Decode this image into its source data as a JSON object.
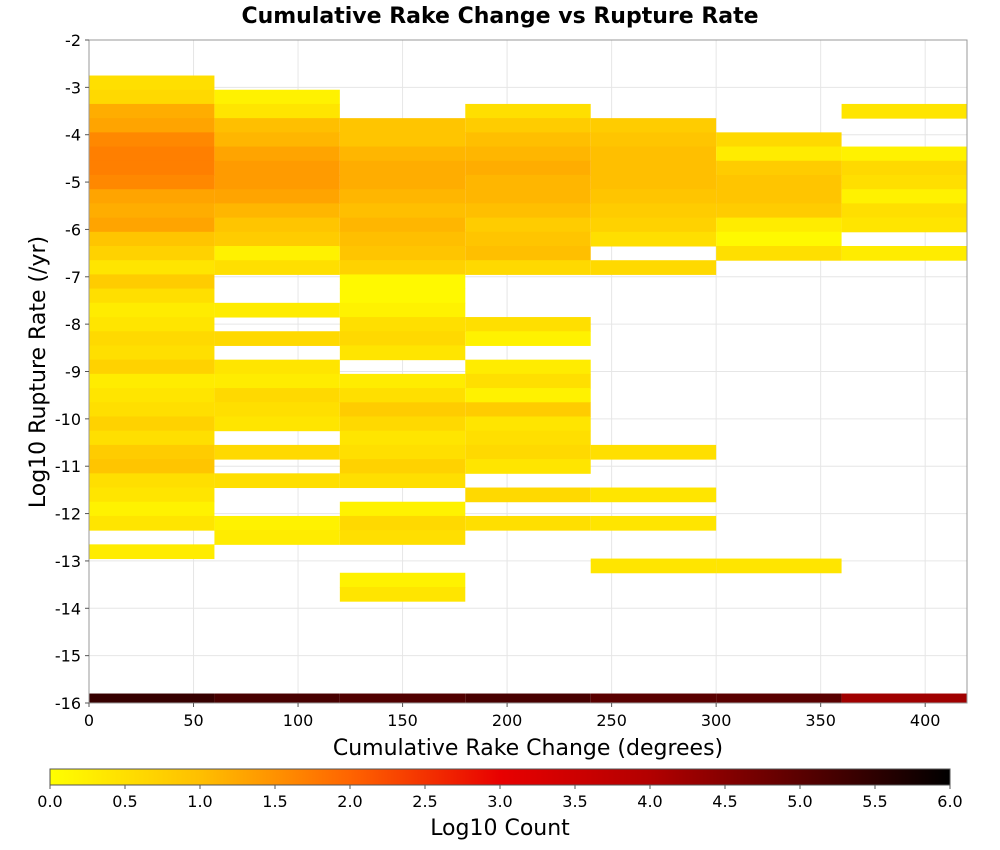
{
  "chart_data": {
    "type": "heatmap",
    "title": "Cumulative Rake Change vs Rupture Rate",
    "xlabel": "Cumulative Rake Change (degrees)",
    "ylabel": "Log10 Rupture Rate (/yr)",
    "xlim": [
      0,
      420
    ],
    "ylim": [
      -16,
      -2
    ],
    "x_ticks": [
      0,
      50,
      100,
      150,
      200,
      250,
      300,
      350,
      400
    ],
    "y_ticks": [
      -2,
      -3,
      -4,
      -5,
      -6,
      -7,
      -8,
      -9,
      -10,
      -11,
      -12,
      -13,
      -14,
      -15,
      -16
    ],
    "bin_width_x": 60,
    "bin_height_y": 0.3,
    "grid": true,
    "colorbar": {
      "label": "Log10 Count",
      "range": [
        0,
        6
      ],
      "ticks": [
        "0.0",
        "0.5",
        "1.0",
        "1.5",
        "2.0",
        "2.5",
        "3.0",
        "3.5",
        "4.0",
        "4.5",
        "5.0",
        "5.5",
        "6.0"
      ],
      "colormap": [
        {
          "v": 0.0,
          "color": "#ffff00"
        },
        {
          "v": 1.0,
          "color": "#ffbf00"
        },
        {
          "v": 2.0,
          "color": "#ff6400"
        },
        {
          "v": 3.0,
          "color": "#e80000"
        },
        {
          "v": 4.0,
          "color": "#b20000"
        },
        {
          "v": 5.0,
          "color": "#5a0000"
        },
        {
          "v": 6.0,
          "color": "#000000"
        }
      ]
    },
    "columns": [
      {
        "x": 0,
        "cells": [
          [
            -2.9,
            0.5
          ],
          [
            -3.2,
            0.6
          ],
          [
            -3.5,
            1.2
          ],
          [
            -3.8,
            1.3
          ],
          [
            -4.1,
            1.6
          ],
          [
            -4.4,
            1.7
          ],
          [
            -4.7,
            1.7
          ],
          [
            -5.0,
            1.6
          ],
          [
            -5.3,
            1.3
          ],
          [
            -5.6,
            1.2
          ],
          [
            -5.9,
            1.3
          ],
          [
            -6.2,
            0.9
          ],
          [
            -6.5,
            0.7
          ],
          [
            -6.8,
            0.4
          ],
          [
            -7.1,
            0.8
          ],
          [
            -7.4,
            0.5
          ],
          [
            -7.7,
            0.3
          ],
          [
            -8.0,
            0.4
          ],
          [
            -8.3,
            0.6
          ],
          [
            -8.6,
            0.5
          ],
          [
            -8.9,
            0.7
          ],
          [
            -9.2,
            0.3
          ],
          [
            -9.5,
            0.4
          ],
          [
            -9.8,
            0.5
          ],
          [
            -10.1,
            0.7
          ],
          [
            -10.4,
            0.5
          ],
          [
            -10.7,
            0.8
          ],
          [
            -11.0,
            0.9
          ],
          [
            -11.3,
            0.5
          ],
          [
            -11.6,
            0.4
          ],
          [
            -11.9,
            0.2
          ],
          [
            -12.2,
            0.4
          ],
          [
            -12.8,
            0.3
          ]
        ]
      },
      {
        "x": 60,
        "cells": [
          [
            -3.2,
            0.2
          ],
          [
            -3.5,
            0.4
          ],
          [
            -3.8,
            1.0
          ],
          [
            -4.1,
            1.1
          ],
          [
            -4.4,
            1.3
          ],
          [
            -4.7,
            1.4
          ],
          [
            -5.0,
            1.4
          ],
          [
            -5.3,
            1.3
          ],
          [
            -5.6,
            1.1
          ],
          [
            -5.9,
            0.9
          ],
          [
            -6.2,
            0.8
          ],
          [
            -6.5,
            0.2
          ],
          [
            -6.8,
            0.5
          ],
          [
            -7.7,
            0.3
          ],
          [
            -8.3,
            0.6
          ],
          [
            -8.9,
            0.4
          ],
          [
            -9.2,
            0.3
          ],
          [
            -9.5,
            0.6
          ],
          [
            -9.8,
            0.5
          ],
          [
            -10.1,
            0.4
          ],
          [
            -10.7,
            0.6
          ],
          [
            -11.3,
            0.5
          ],
          [
            -12.2,
            0.2
          ],
          [
            -12.5,
            0.3
          ]
        ]
      },
      {
        "x": 120,
        "cells": [
          [
            -3.8,
            0.9
          ],
          [
            -4.1,
            0.9
          ],
          [
            -4.4,
            1.1
          ],
          [
            -4.7,
            1.2
          ],
          [
            -5.0,
            1.2
          ],
          [
            -5.3,
            1.1
          ],
          [
            -5.6,
            1.0
          ],
          [
            -5.9,
            1.1
          ],
          [
            -6.2,
            1.0
          ],
          [
            -6.5,
            0.9
          ],
          [
            -6.8,
            0.7
          ],
          [
            -7.1,
            0.1
          ],
          [
            -7.4,
            0.1
          ],
          [
            -7.7,
            0.2
          ],
          [
            -8.0,
            0.5
          ],
          [
            -8.3,
            0.6
          ],
          [
            -8.6,
            0.4
          ],
          [
            -9.2,
            0.3
          ],
          [
            -9.5,
            0.5
          ],
          [
            -9.8,
            0.8
          ],
          [
            -10.1,
            0.6
          ],
          [
            -10.4,
            0.4
          ],
          [
            -10.7,
            0.5
          ],
          [
            -11.0,
            0.7
          ],
          [
            -11.3,
            0.5
          ],
          [
            -11.9,
            0.2
          ],
          [
            -12.2,
            0.6
          ],
          [
            -12.5,
            0.5
          ],
          [
            -13.4,
            0.2
          ],
          [
            -13.7,
            0.4
          ]
        ]
      },
      {
        "x": 180,
        "cells": [
          [
            -3.5,
            0.5
          ],
          [
            -3.8,
            0.8
          ],
          [
            -4.1,
            1.0
          ],
          [
            -4.4,
            1.1
          ],
          [
            -4.7,
            1.2
          ],
          [
            -5.0,
            1.1
          ],
          [
            -5.3,
            1.1
          ],
          [
            -5.6,
            1.0
          ],
          [
            -5.9,
            0.8
          ],
          [
            -6.2,
            0.9
          ],
          [
            -6.5,
            1.0
          ],
          [
            -6.8,
            0.6
          ],
          [
            -8.0,
            0.5
          ],
          [
            -8.3,
            0.2
          ],
          [
            -8.9,
            0.3
          ],
          [
            -9.2,
            0.5
          ],
          [
            -9.5,
            0.2
          ],
          [
            -9.8,
            0.8
          ],
          [
            -10.1,
            0.4
          ],
          [
            -10.4,
            0.5
          ],
          [
            -10.7,
            0.6
          ],
          [
            -11.0,
            0.4
          ],
          [
            -11.6,
            0.6
          ],
          [
            -12.2,
            0.5
          ]
        ]
      },
      {
        "x": 240,
        "cells": [
          [
            -3.8,
            0.8
          ],
          [
            -4.1,
            0.9
          ],
          [
            -4.4,
            1.0
          ],
          [
            -4.7,
            1.0
          ],
          [
            -5.0,
            1.0
          ],
          [
            -5.3,
            0.9
          ],
          [
            -5.6,
            0.8
          ],
          [
            -5.9,
            0.7
          ],
          [
            -6.2,
            0.5
          ],
          [
            -6.8,
            0.6
          ],
          [
            -10.7,
            0.5
          ],
          [
            -11.6,
            0.4
          ],
          [
            -12.2,
            0.4
          ],
          [
            -13.1,
            0.4
          ]
        ]
      },
      {
        "x": 300,
        "cells": [
          [
            -4.1,
            0.6
          ],
          [
            -4.4,
            0.3
          ],
          [
            -4.7,
            0.8
          ],
          [
            -5.0,
            0.9
          ],
          [
            -5.3,
            0.9
          ],
          [
            -5.6,
            0.8
          ],
          [
            -5.9,
            0.3
          ],
          [
            -6.2,
            0.1
          ],
          [
            -6.5,
            0.5
          ],
          [
            -13.1,
            0.4
          ]
        ]
      },
      {
        "x": 360,
        "cells": [
          [
            -3.5,
            0.4
          ],
          [
            -4.4,
            0.2
          ],
          [
            -4.7,
            0.6
          ],
          [
            -5.0,
            0.5
          ],
          [
            -5.3,
            0.2
          ],
          [
            -5.6,
            0.5
          ],
          [
            -5.9,
            0.4
          ],
          [
            -6.5,
            0.3
          ]
        ]
      }
    ],
    "bottom_row": {
      "y": -16.0,
      "values": [
        5.4,
        5.2,
        5.1,
        5.2,
        5.0,
        5.0,
        4.2
      ]
    }
  }
}
